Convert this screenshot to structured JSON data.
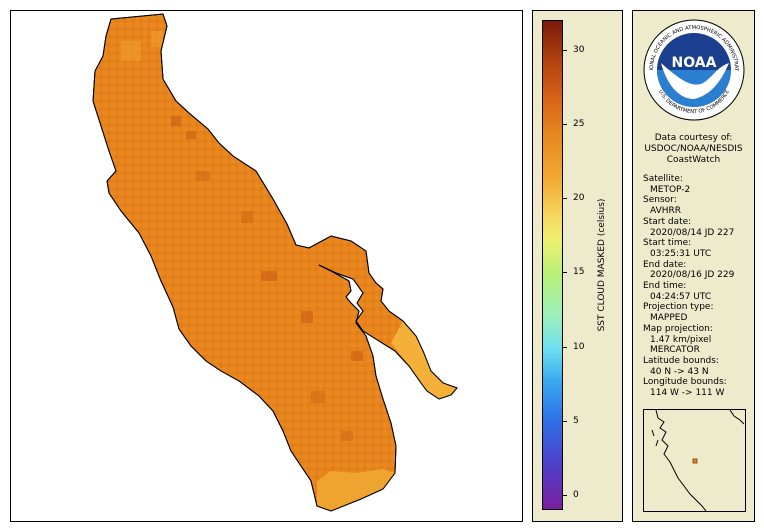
{
  "map": {
    "land_color": "#ffffff",
    "lake_color": "#e8841c",
    "shallow_color": "#f4b038",
    "outline_color": "#000000"
  },
  "legend": {
    "title": "SST CLOUD MASKED (celsius)",
    "ticks": [
      "0",
      "5",
      "10",
      "15",
      "20",
      "25",
      "30"
    ],
    "range": [
      -1,
      32
    ]
  },
  "info": {
    "logo_text": "NOAA",
    "logo_ring_text": "NATIONAL OCEANIC AND ATMOSPHERIC ADMINISTRATION",
    "logo_bottom_text": "U.S. DEPARTMENT OF COMMERCE",
    "courtesy": [
      "Data courtesy of:",
      "USDOC/NOAA/NESDIS",
      "CoastWatch"
    ],
    "fields": [
      {
        "key": "Satellite:",
        "value": "METOP-2"
      },
      {
        "key": "Sensor:",
        "value": "AVHRR"
      },
      {
        "key": "Start date:",
        "value": "2020/08/14 JD 227"
      },
      {
        "key": "Start time:",
        "value": "03:25:31 UTC"
      },
      {
        "key": "End date:",
        "value": "2020/08/16 JD 229"
      },
      {
        "key": "End time:",
        "value": "04:24:57 UTC"
      },
      {
        "key": "Projection type:",
        "value": "MAPPED"
      },
      {
        "key": "Map projection:",
        "value": "1.47 km/pixel\nMERCATOR"
      },
      {
        "key": "Latitude bounds:",
        "value": "40 N -> 43 N"
      },
      {
        "key": "Longitude bounds:",
        "value": "114 W -> 111 W"
      }
    ],
    "locator_marker_color": "#e8841c"
  }
}
